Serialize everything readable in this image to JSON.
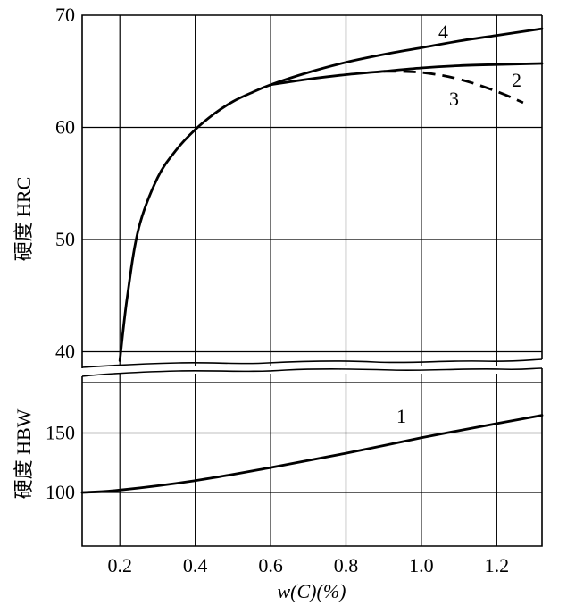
{
  "chart_data": [
    {
      "panel": "top",
      "type": "line",
      "ylabel": "硬度 HRC",
      "xlim": [
        0.1,
        1.32
      ],
      "ylim": [
        39,
        70
      ],
      "xticks": [
        0.2,
        0.4,
        0.6,
        0.8,
        1.0,
        1.2
      ],
      "yticks": [
        40,
        50,
        60,
        70
      ],
      "series": [
        {
          "name": "4",
          "style": "solid",
          "x": [
            0.2,
            0.22,
            0.25,
            0.3,
            0.35,
            0.4,
            0.45,
            0.5,
            0.55,
            0.6,
            0.7,
            0.8,
            0.9,
            1.0,
            1.1,
            1.2,
            1.32
          ],
          "y": [
            39.2,
            45,
            51,
            55.5,
            58,
            59.8,
            61.2,
            62.3,
            63.1,
            63.8,
            64.9,
            65.8,
            66.5,
            67.1,
            67.7,
            68.2,
            68.8
          ]
        },
        {
          "name": "2",
          "style": "solid",
          "x": [
            0.6,
            0.7,
            0.8,
            0.9,
            1.0,
            1.1,
            1.2,
            1.32
          ],
          "y": [
            63.8,
            64.3,
            64.7,
            65.0,
            65.3,
            65.5,
            65.6,
            65.7
          ]
        },
        {
          "name": "3",
          "style": "dashed",
          "x": [
            0.9,
            1.0,
            1.1,
            1.2,
            1.27
          ],
          "y": [
            65.0,
            64.9,
            64.3,
            63.2,
            62.2
          ]
        }
      ]
    },
    {
      "panel": "bottom",
      "type": "line",
      "xlabel": "w(C)(%)",
      "ylabel": "硬度 HBW",
      "xlim": [
        0.1,
        1.32
      ],
      "ylim": [
        55,
        190
      ],
      "xticks": [
        0.2,
        0.4,
        0.6,
        0.8,
        1.0,
        1.2
      ],
      "xtick_labels": [
        "0.2",
        "0.4",
        "0.6",
        "0.8",
        "1.0",
        "1.2"
      ],
      "yticks": [
        100,
        150
      ],
      "series": [
        {
          "name": "1",
          "style": "solid",
          "x": [
            0.1,
            0.2,
            0.4,
            0.6,
            0.8,
            1.0,
            1.2,
            1.32
          ],
          "y": [
            100,
            102,
            110,
            121,
            133,
            146,
            158,
            165
          ]
        }
      ]
    }
  ]
}
